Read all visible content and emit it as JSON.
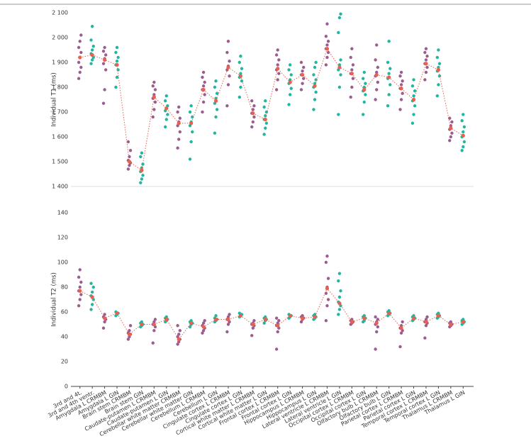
{
  "chart_data": [
    {
      "type": "strip",
      "y_label": "Individual T1 (ms)",
      "ylim": [
        1400,
        2100
      ],
      "yticks": [
        {
          "value": 1400,
          "label": "1 400"
        },
        {
          "value": 1500,
          "label": "1 500"
        },
        {
          "value": 1600,
          "label": "1 600"
        },
        {
          "value": 1700,
          "label": "1 700"
        },
        {
          "value": 1800,
          "label": "1 800"
        },
        {
          "value": 1900,
          "label": "1 900"
        },
        {
          "value": 2000,
          "label": "2 000"
        },
        {
          "value": 2100,
          "label": "2 100"
        }
      ],
      "colors": [
        "#9c5c8f",
        "#22b5a0"
      ],
      "mean_color": "#ea604c",
      "points": [
        [
          1835,
          1860,
          1880,
          1900,
          1920,
          1940,
          1960,
          1985,
          2010
        ],
        [
          1895,
          1910,
          1920,
          1935,
          1950,
          1965,
          1990,
          2045
        ],
        [
          1735,
          1790,
          1870,
          1895,
          1915,
          1930,
          1945,
          1960
        ],
        [
          1800,
          1840,
          1870,
          1890,
          1905,
          1920,
          1940,
          1960
        ],
        [
          1470,
          1485,
          1495,
          1505,
          1520,
          1545,
          1580
        ],
        [
          1415,
          1430,
          1445,
          1460,
          1475,
          1490,
          1520,
          1535
        ],
        [
          1680,
          1710,
          1740,
          1755,
          1770,
          1790,
          1805,
          1820
        ],
        [
          1640,
          1670,
          1690,
          1705,
          1715,
          1725,
          1745,
          1765
        ],
        [
          1555,
          1590,
          1620,
          1645,
          1660,
          1675,
          1700,
          1720
        ],
        [
          1510,
          1580,
          1620,
          1645,
          1660,
          1680,
          1700,
          1725
        ],
        [
          1700,
          1740,
          1770,
          1790,
          1805,
          1820,
          1840,
          1860
        ],
        [
          1615,
          1680,
          1710,
          1735,
          1755,
          1775,
          1800,
          1825
        ],
        [
          1725,
          1810,
          1845,
          1870,
          1885,
          1905,
          1940,
          1985
        ],
        [
          1760,
          1800,
          1825,
          1840,
          1855,
          1875,
          1900,
          1925
        ],
        [
          1640,
          1660,
          1680,
          1695,
          1710,
          1725,
          1745
        ],
        [
          1610,
          1635,
          1655,
          1670,
          1685,
          1700,
          1720,
          1745
        ],
        [
          1790,
          1830,
          1855,
          1870,
          1890,
          1910,
          1930,
          1950
        ],
        [
          1730,
          1770,
          1795,
          1815,
          1830,
          1850,
          1870,
          1890
        ],
        [
          1790,
          1815,
          1835,
          1850,
          1865,
          1880,
          1900
        ],
        [
          1710,
          1750,
          1780,
          1800,
          1815,
          1830,
          1850,
          1880,
          1900
        ],
        [
          1890,
          1920,
          1940,
          1955,
          1970,
          1985,
          2005,
          2055
        ],
        [
          1690,
          1800,
          1850,
          1870,
          1890,
          1910,
          2020,
          2080,
          2095
        ],
        [
          1760,
          1800,
          1835,
          1855,
          1870,
          1890,
          1920,
          1955
        ],
        [
          1690,
          1740,
          1770,
          1785,
          1800,
          1815,
          1835,
          1860
        ],
        [
          1750,
          1790,
          1820,
          1845,
          1860,
          1880,
          1910,
          1970
        ],
        [
          1725,
          1770,
          1810,
          1835,
          1855,
          1875,
          1900,
          1985
        ],
        [
          1710,
          1750,
          1775,
          1795,
          1810,
          1825,
          1845,
          1860
        ],
        [
          1655,
          1690,
          1725,
          1745,
          1765,
          1785,
          1805,
          1830
        ],
        [
          1830,
          1860,
          1880,
          1895,
          1910,
          1925,
          1940,
          1955
        ],
        [
          1765,
          1810,
          1845,
          1865,
          1880,
          1895,
          1920,
          1950
        ],
        [
          1585,
          1600,
          1615,
          1630,
          1645,
          1660,
          1675
        ],
        [
          1545,
          1560,
          1580,
          1600,
          1620,
          1640,
          1665,
          1690
        ]
      ],
      "means": [
        1920,
        1930,
        1910,
        1890,
        1500,
        1465,
        1760,
        1715,
        1655,
        1655,
        1790,
        1745,
        1880,
        1845,
        1695,
        1670,
        1875,
        1820,
        1850,
        1805,
        1955,
        1880,
        1855,
        1790,
        1850,
        1840,
        1795,
        1750,
        1895,
        1870,
        1635,
        1605
      ]
    },
    {
      "type": "strip",
      "y_label": "Individual T2 (ms)",
      "ylim": [
        0,
        140
      ],
      "yticks": [
        0,
        20,
        40,
        60,
        80,
        100,
        120,
        140
      ],
      "colors": [
        "#9c5c8f",
        "#22b5a0"
      ],
      "mean_color": "#ea604c",
      "categories": [
        "3rd and 4t.",
        "3rd and 4th ventr.",
        "Amygdala L CRMBM",
        "Amygdala L GIN",
        "Brain stem CRMBM",
        "Brain stem GIN",
        "Caudate-putamen L CRMBM",
        "Caudate-putamen L GIN",
        "Cerebellar white matter CRMBM",
        "Cerebellar white matter GIN",
        "Cerebellum L CRMBM",
        "Cerebellum L GIN",
        "Cingulate cortex L CRMBM",
        "Cingulate cortex L GIN",
        "Cortical white matter L CRMBM",
        "Cortical white matter L GIN",
        "Frontal cortex L CRMBM",
        "Frontal cortex L GIN",
        "Hippocampus L CRMBM",
        "Hippocampus L GIN",
        "Lateral ventricle L CRMBM",
        "Lateral ventricle L GIN",
        "Occipital cortex L CRMBM",
        "Occipital cortex L GIN",
        "Olfactory bulb L CRMBM",
        "Olfactory bulb L GIN",
        "Parietal cortex L CRMBM",
        "Parietal cortex L GIN",
        "Temporal cortex L CRMBM",
        "Temporal cortex L GIN",
        "Thalamus L CRMBM",
        "Thalamus L GIN"
      ],
      "points": [
        [
          65,
          70,
          74,
          77,
          80,
          84,
          88,
          94
        ],
        [
          62,
          66,
          70,
          73,
          76,
          80,
          83
        ],
        [
          47,
          52,
          54,
          56,
          58
        ],
        [
          57,
          58,
          59,
          60
        ],
        [
          38,
          40,
          42,
          43,
          45,
          49
        ],
        [
          48,
          49,
          50,
          51,
          52
        ],
        [
          35,
          45,
          48,
          50,
          52,
          54
        ],
        [
          52,
          53,
          54,
          55,
          56
        ],
        [
          34,
          36,
          38,
          40,
          42,
          45,
          49
        ],
        [
          48,
          50,
          51,
          52,
          53
        ],
        [
          43,
          45,
          47,
          49,
          51,
          53
        ],
        [
          52,
          53,
          54,
          55,
          57
        ],
        [
          44,
          50,
          52,
          54,
          56,
          58
        ],
        [
          56,
          57,
          58,
          59
        ],
        [
          41,
          47,
          49,
          50,
          51,
          53
        ],
        [
          51,
          53,
          54,
          55,
          56
        ],
        [
          30,
          44,
          47,
          49,
          51,
          53,
          55
        ],
        [
          55,
          56,
          57,
          58
        ],
        [
          52,
          54,
          55,
          56,
          57
        ],
        [
          54,
          55,
          56,
          57,
          58
        ],
        [
          53,
          65,
          70,
          75,
          80,
          87,
          100,
          105
        ],
        [
          58,
          62,
          65,
          68,
          72,
          77,
          85,
          91
        ],
        [
          50,
          51,
          52,
          53,
          54
        ],
        [
          52,
          53,
          55,
          56,
          57
        ],
        [
          30,
          44,
          48,
          50,
          52,
          54,
          56
        ],
        [
          57,
          58,
          59,
          60,
          61
        ],
        [
          32,
          43,
          45,
          47,
          49,
          52
        ],
        [
          53,
          54,
          55,
          56,
          57
        ],
        [
          39,
          49,
          51,
          52,
          54,
          56
        ],
        [
          55,
          56,
          57,
          58,
          59
        ],
        [
          48,
          49,
          50,
          51,
          52
        ],
        [
          50,
          51,
          52,
          53,
          54
        ]
      ],
      "means": [
        77,
        72,
        55,
        59,
        42,
        50,
        50,
        54,
        38,
        51,
        48,
        54,
        54,
        57,
        50,
        54,
        49,
        57,
        55,
        56,
        79,
        67,
        52,
        55,
        51,
        59,
        47,
        55,
        52,
        57,
        50,
        52
      ]
    }
  ]
}
